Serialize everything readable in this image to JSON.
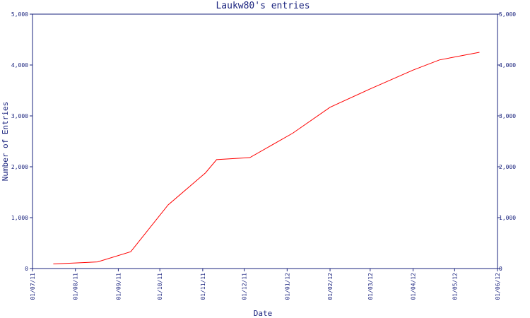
{
  "chart_data": {
    "type": "line",
    "title": "Laukw80's entries",
    "xlabel": "Date",
    "ylabel": "Number of Entries",
    "ylim": [
      0,
      5000
    ],
    "y_ticks": [
      0,
      1000,
      2000,
      3000,
      4000,
      5000
    ],
    "y_tick_labels": [
      "0",
      "1,000",
      "2,000",
      "3,000",
      "4,000",
      "5,000"
    ],
    "x_ticks": [
      "2011-07-01",
      "2011-08-01",
      "2011-09-01",
      "2011-10-01",
      "2011-11-01",
      "2011-12-01",
      "2012-01-01",
      "2012-02-01",
      "2012-03-01",
      "2012-04-01",
      "2012-05-01",
      "2012-06-01"
    ],
    "x_tick_labels": [
      "01/07/11",
      "01/08/11",
      "01/09/11",
      "01/10/11",
      "01/11/11",
      "01/12/11",
      "01/01/12",
      "01/02/12",
      "01/03/12",
      "01/04/12",
      "01/05/12",
      "01/06/12"
    ],
    "xlim": [
      "2011-07-01",
      "2012-06-01"
    ],
    "grid": false,
    "line_color": "#ff0000",
    "axis_color": "#1a237e",
    "series": [
      {
        "x": [
          "2011-07-16",
          "2011-08-01",
          "2011-08-17",
          "2011-09-10",
          "2011-10-07",
          "2011-11-03",
          "2011-11-11",
          "2011-12-05",
          "2012-01-05",
          "2012-02-01",
          "2012-03-01",
          "2012-04-01",
          "2012-04-20",
          "2012-05-19"
        ],
        "values": [
          90,
          110,
          130,
          330,
          1250,
          1880,
          2140,
          2180,
          2660,
          3170,
          3530,
          3900,
          4100,
          4250
        ]
      }
    ]
  }
}
